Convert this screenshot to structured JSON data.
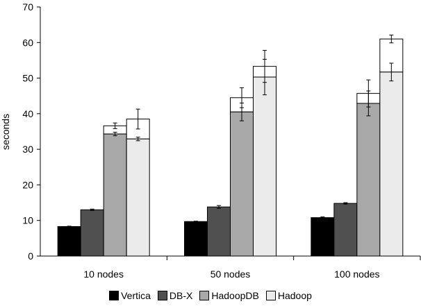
{
  "chart_data": {
    "type": "bar",
    "ylabel": "seconds",
    "ylim": [
      0,
      70
    ],
    "yticks": [
      "0",
      "10",
      "20",
      "30",
      "40",
      "50",
      "60",
      "70"
    ],
    "categories": [
      "10 nodes",
      "50 nodes",
      "100 nodes"
    ],
    "legend_position": "bottom",
    "grid": false,
    "series": [
      {
        "name": "Vertica",
        "color": "#000000",
        "values": [
          8.3,
          9.7,
          10.8
        ],
        "errors": [
          0.1,
          0.1,
          0.2
        ]
      },
      {
        "name": "DB-X",
        "color": "#505050",
        "values": [
          13.0,
          13.8,
          14.8
        ],
        "errors": [
          0.2,
          0.4,
          0.2
        ]
      },
      {
        "name": "HadoopDB",
        "color": "#a8a8a8",
        "values": [
          34.3,
          40.5,
          42.9
        ],
        "errors": [
          0.5,
          2.5,
          3.5
        ],
        "stacked_top": [
          36.6,
          44.5,
          45.7
        ],
        "stacked_top_errors": [
          0.8,
          2.8,
          3.8
        ]
      },
      {
        "name": "Hadoop",
        "color": "#ebebeb",
        "values": [
          32.9,
          50.3,
          51.7
        ],
        "errors": [
          0.5,
          5.0,
          2.5
        ],
        "stacked_top": [
          38.5,
          53.3,
          61.0
        ],
        "stacked_top_errors": [
          2.8,
          4.5,
          1.1
        ]
      }
    ]
  }
}
